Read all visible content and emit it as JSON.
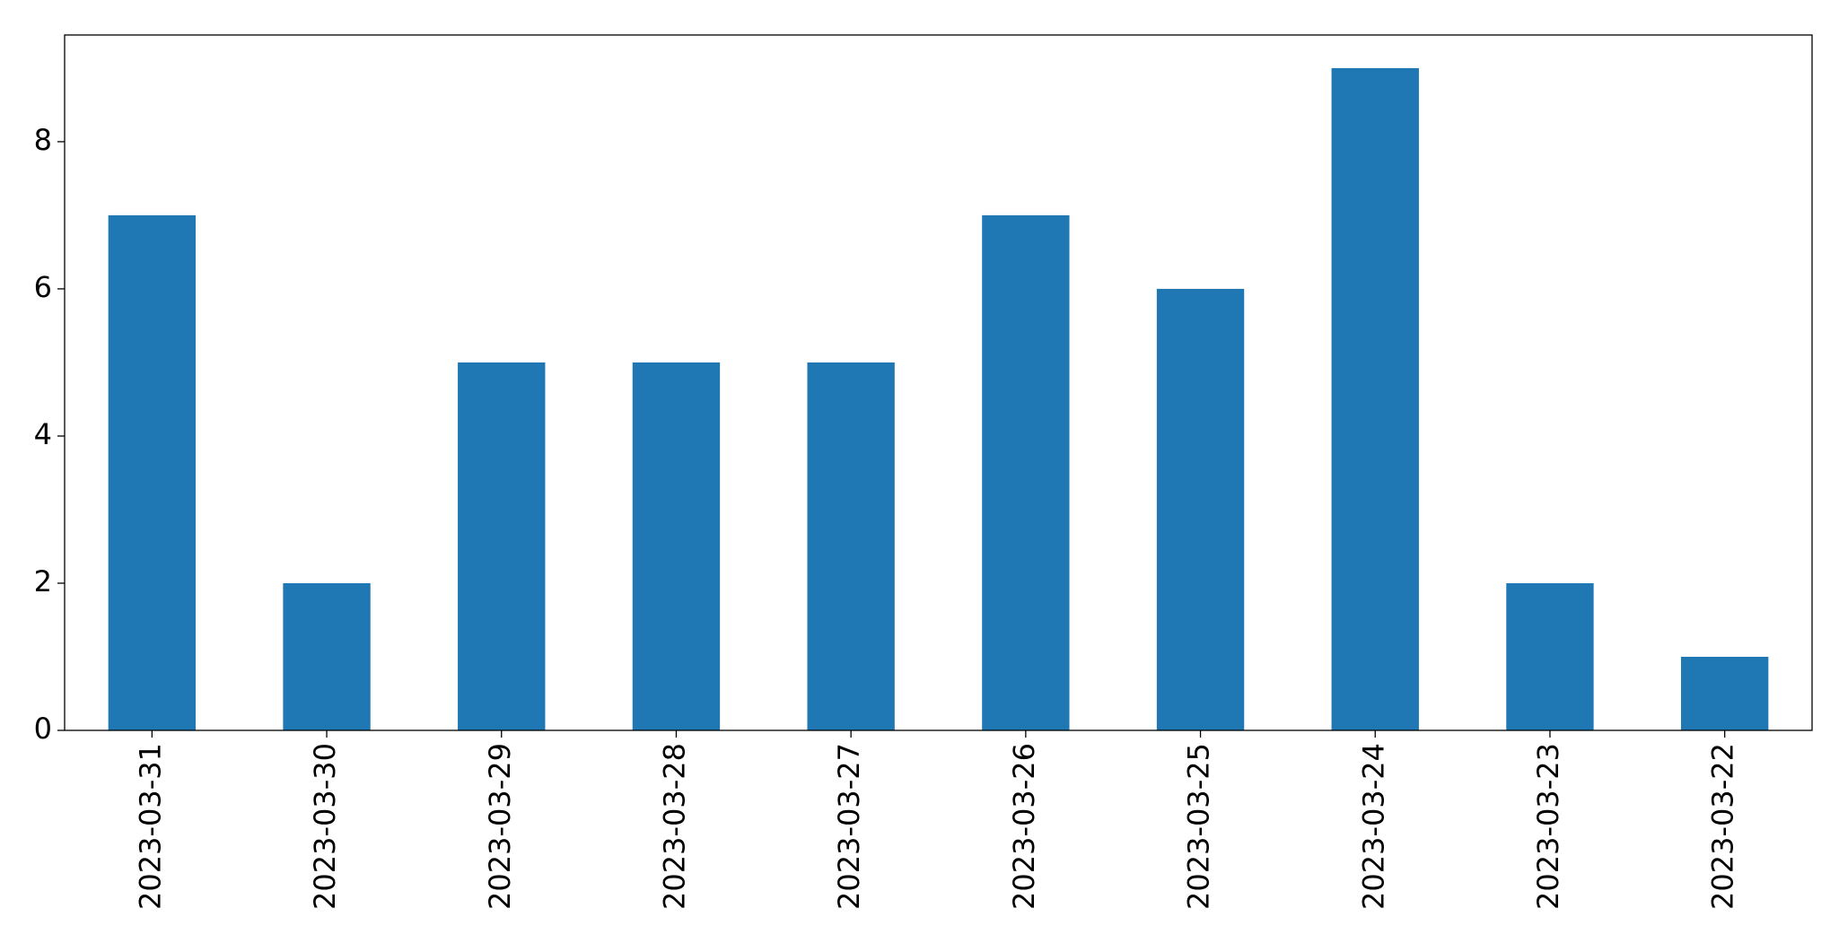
{
  "chart_data": {
    "type": "bar",
    "categories": [
      "2023-03-31",
      "2023-03-30",
      "2023-03-29",
      "2023-03-28",
      "2023-03-27",
      "2023-03-26",
      "2023-03-25",
      "2023-03-24",
      "2023-03-23",
      "2023-03-22"
    ],
    "values": [
      7,
      2,
      5,
      5,
      5,
      7,
      6,
      9,
      2,
      1
    ],
    "color": "#1f77b4",
    "ylim": [
      0,
      9.45
    ],
    "yticks": [
      0,
      2,
      4,
      6,
      8
    ],
    "grid": false
  }
}
